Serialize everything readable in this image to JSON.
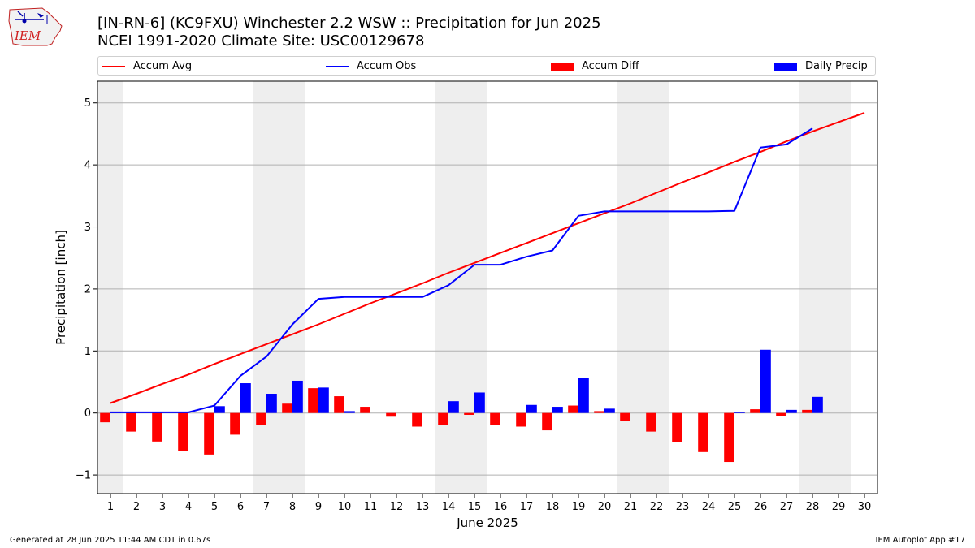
{
  "header": {
    "title_line1": "[IN-RN-6] (KC9FXU) Winchester 2.2 WSW :: Precipitation for Jun 2025",
    "title_line2": "NCEI 1991-2020 Climate Site: USC00129678"
  },
  "logo": {
    "text": "IEM"
  },
  "footer": {
    "generated": "Generated at 28 Jun 2025 11:44 AM CDT in 0.67s",
    "app": "IEM Autoplot App #17"
  },
  "colors": {
    "avg": "#ff0000",
    "obs": "#0000ff",
    "diff": "#ff0000",
    "daily": "#0000ff",
    "weekend_band": "#eeeeee",
    "grid": "#b0b0b0"
  },
  "chart_data": {
    "type": "bar",
    "xlabel": "June 2025",
    "ylabel": "Precipitation [inch]",
    "xlim": [
      0.5,
      30.5
    ],
    "ylim": [
      -1.3,
      5.35
    ],
    "yticks": [
      -1,
      0,
      1,
      2,
      3,
      4,
      5
    ],
    "ytick_labels": [
      "−1",
      "0",
      "1",
      "2",
      "3",
      "4",
      "5"
    ],
    "grid": "horizontal",
    "legend_position": "top",
    "weekend_bands": [
      [
        0.5,
        1.5
      ],
      [
        6.5,
        8.5
      ],
      [
        13.5,
        15.5
      ],
      [
        20.5,
        22.5
      ],
      [
        27.5,
        29.5
      ]
    ],
    "days": [
      1,
      2,
      3,
      4,
      5,
      6,
      7,
      8,
      9,
      10,
      11,
      12,
      13,
      14,
      15,
      16,
      17,
      18,
      19,
      20,
      21,
      22,
      23,
      24,
      25,
      26,
      27,
      28,
      29,
      30
    ],
    "series": [
      {
        "name": "Accum Avg",
        "kind": "line",
        "x": [
          1,
          2,
          3,
          4,
          5,
          6,
          7,
          8,
          9,
          10,
          11,
          12,
          13,
          14,
          15,
          16,
          17,
          18,
          19,
          20,
          21,
          22,
          23,
          24,
          25,
          26,
          27,
          28,
          29,
          30
        ],
        "values": [
          0.16,
          0.31,
          0.47,
          0.62,
          0.79,
          0.95,
          1.11,
          1.27,
          1.43,
          1.6,
          1.77,
          1.93,
          2.09,
          2.26,
          2.42,
          2.58,
          2.74,
          2.9,
          3.06,
          3.22,
          3.38,
          3.55,
          3.72,
          3.88,
          4.05,
          4.21,
          4.38,
          4.54,
          4.69,
          4.84
        ]
      },
      {
        "name": "Accum Obs",
        "kind": "line",
        "x": [
          1,
          2,
          3,
          4,
          5,
          6,
          7,
          8,
          9,
          10,
          11,
          12,
          13,
          14,
          15,
          16,
          17,
          18,
          19,
          20,
          21,
          22,
          23,
          24,
          25,
          26,
          27,
          28
        ],
        "values": [
          0.01,
          0.01,
          0.01,
          0.01,
          0.12,
          0.6,
          0.91,
          1.43,
          1.84,
          1.87,
          1.87,
          1.87,
          1.87,
          2.06,
          2.39,
          2.39,
          2.52,
          2.62,
          3.18,
          3.25,
          3.25,
          3.25,
          3.25,
          3.25,
          3.26,
          4.28,
          4.33,
          4.59
        ]
      },
      {
        "name": "Accum Diff",
        "kind": "bar",
        "x": [
          1,
          2,
          3,
          4,
          5,
          6,
          7,
          8,
          9,
          10,
          11,
          12,
          13,
          14,
          15,
          16,
          17,
          18,
          19,
          20,
          21,
          22,
          23,
          24,
          25,
          26,
          27,
          28
        ],
        "values": [
          -0.15,
          -0.3,
          -0.46,
          -0.61,
          -0.67,
          -0.35,
          -0.2,
          0.15,
          0.4,
          0.27,
          0.1,
          -0.06,
          -0.22,
          -0.2,
          -0.03,
          -0.19,
          -0.22,
          -0.28,
          0.12,
          0.03,
          -0.13,
          -0.3,
          -0.47,
          -0.63,
          -0.79,
          0.06,
          -0.05,
          0.05
        ]
      },
      {
        "name": "Daily Precip",
        "kind": "bar",
        "x": [
          1,
          2,
          3,
          4,
          5,
          6,
          7,
          8,
          9,
          10,
          11,
          12,
          13,
          14,
          15,
          16,
          17,
          18,
          19,
          20,
          21,
          22,
          23,
          24,
          25,
          26,
          27,
          28
        ],
        "values": [
          0.01,
          0,
          0,
          0,
          0.11,
          0.48,
          0.31,
          0.52,
          0.41,
          0.03,
          0,
          0,
          0,
          0.19,
          0.33,
          0,
          0.13,
          0.1,
          0.56,
          0.07,
          0,
          0,
          0,
          0,
          0.01,
          1.02,
          0.05,
          0.26
        ]
      }
    ]
  }
}
